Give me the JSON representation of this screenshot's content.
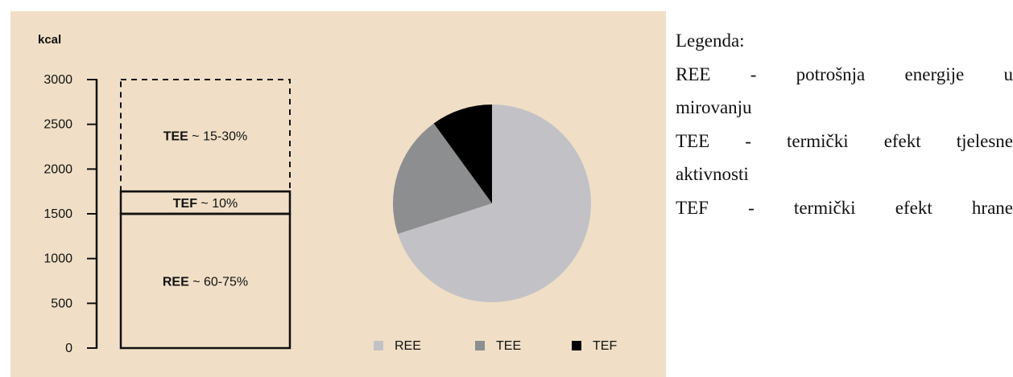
{
  "chart_data": [
    {
      "type": "bar",
      "ylabel": "kcal",
      "ylim": [
        0,
        3000
      ],
      "yticks": [
        0,
        500,
        1000,
        1500,
        2000,
        2500,
        3000
      ],
      "segments": [
        {
          "name": "REE",
          "label_bold": "REE",
          "label_rest": " ~ 60-75%",
          "from": 0,
          "to": 1500,
          "line_style": "solid"
        },
        {
          "name": "TEF",
          "label_bold": "TEF",
          "label_rest": " ~ 10%",
          "from": 1500,
          "to": 1750,
          "line_style": "solid"
        },
        {
          "name": "TEE",
          "label_bold": "TEE",
          "label_rest": " ~ 15-30%",
          "from": 1750,
          "to": 3000,
          "line_style": "dashed"
        }
      ]
    },
    {
      "type": "pie",
      "slices": [
        {
          "name": "REE",
          "value": 70,
          "color": "#c2c2c6"
        },
        {
          "name": "TEE",
          "value": 20,
          "color": "#8d8e90"
        },
        {
          "name": "TEF",
          "value": 10,
          "color": "#000000"
        }
      ],
      "legend": [
        "REE",
        "TEE",
        "TEF"
      ]
    }
  ],
  "legend_text": {
    "title": "Legenda:",
    "ree_line1": "REE - potrošnja energije u",
    "ree_line2": "mirovanju",
    "tee_line1": "TEE - termički efekt tjelesne",
    "tee_line2": "aktivnosti",
    "tef_line1": "TEF - termički efekt hrane"
  },
  "colors": {
    "panel_bg": "#f0dfc6",
    "axis": "#111111"
  }
}
